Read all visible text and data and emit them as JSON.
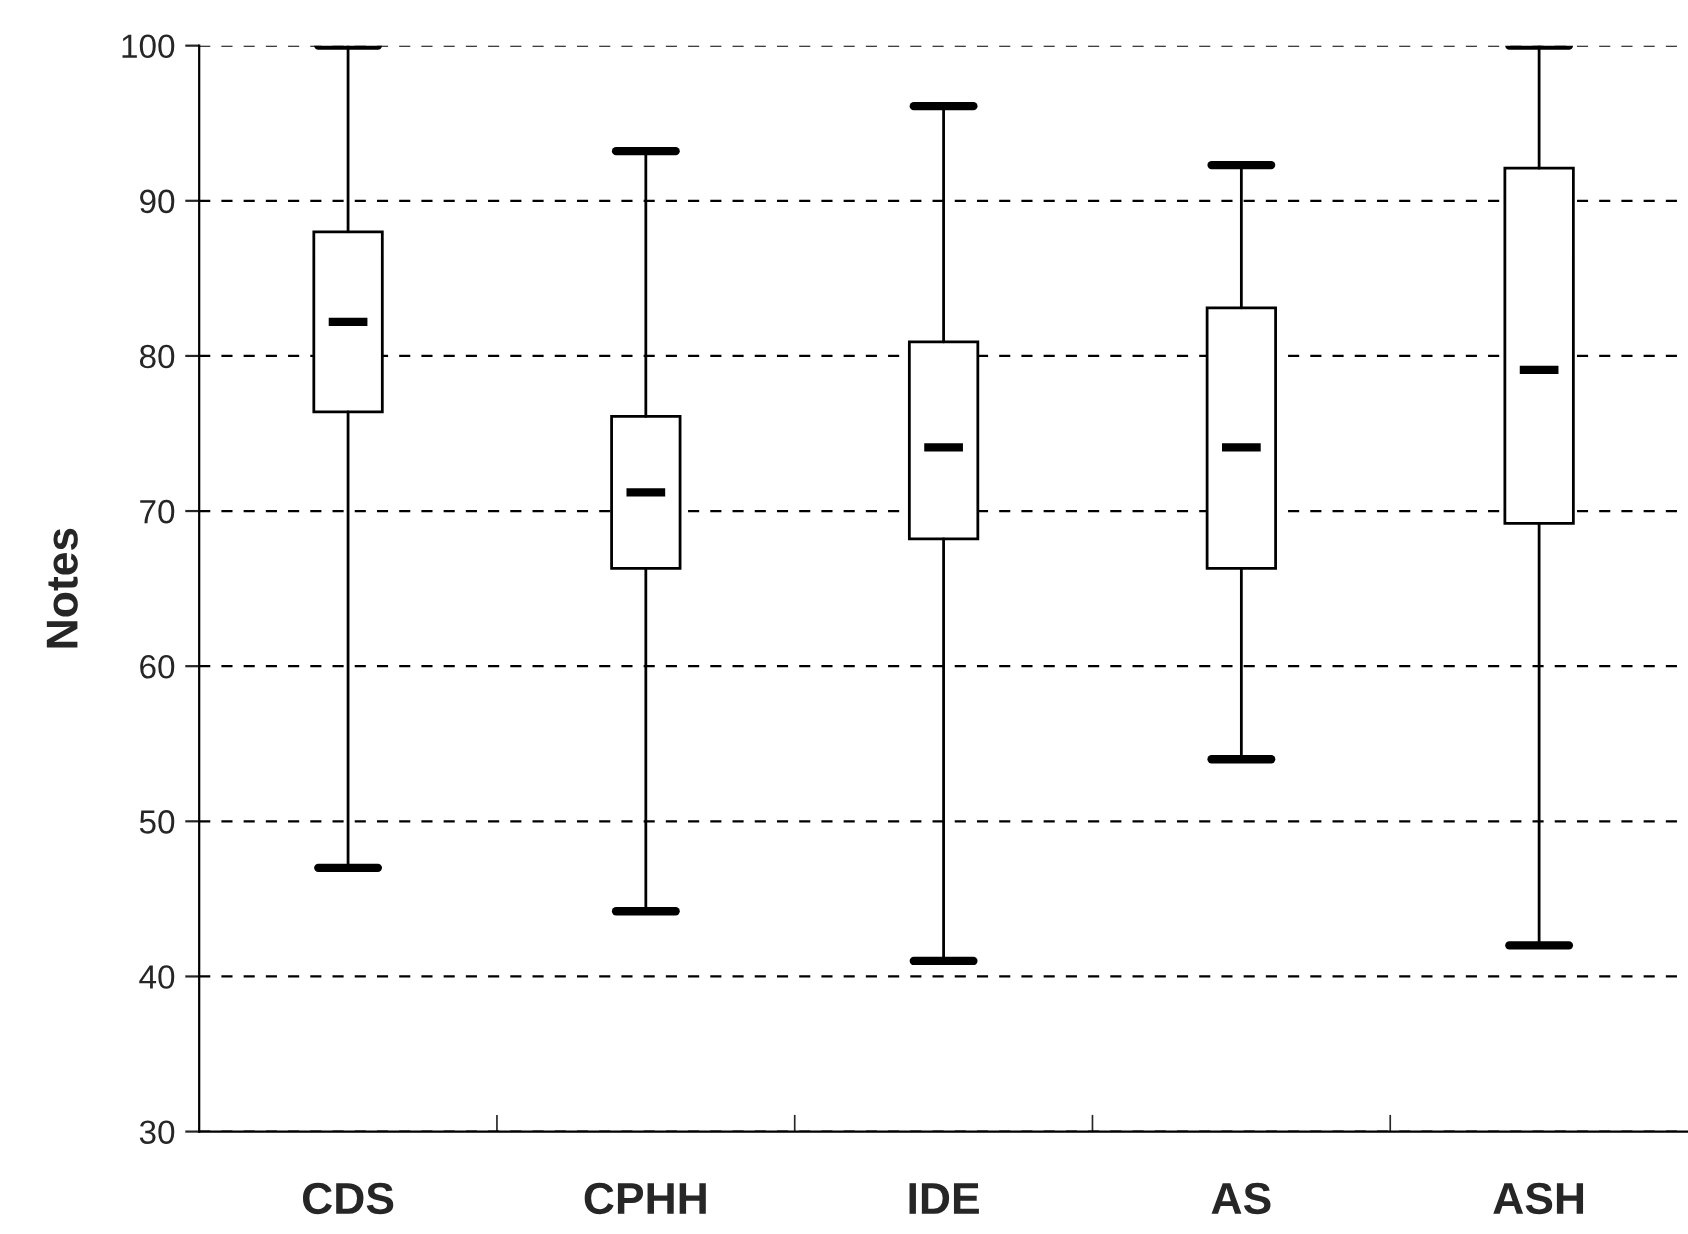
{
  "chart_data": {
    "type": "box",
    "ylabel": "Notes",
    "categories": [
      "CDS",
      "CPHH",
      "IDE",
      "AS",
      "ASH"
    ],
    "boxes": [
      {
        "low": 47,
        "q1": 76.4,
        "median": 82.2,
        "q3": 88,
        "high": 100
      },
      {
        "low": 44.2,
        "q1": 66.3,
        "median": 71.2,
        "q3": 76.1,
        "high": 93.2
      },
      {
        "low": 41,
        "q1": 68.2,
        "median": 74.1,
        "q3": 80.9,
        "high": 96.1
      },
      {
        "low": 54,
        "q1": 66.3,
        "median": 74.1,
        "q3": 83.1,
        "high": 92.3
      },
      {
        "low": 42,
        "q1": 69.2,
        "median": 79.1,
        "q3": 92.1,
        "high": 100
      }
    ],
    "ylim": [
      30,
      100
    ],
    "yticks": [
      30,
      40,
      50,
      60,
      70,
      80,
      90,
      100
    ],
    "grid": "y"
  }
}
